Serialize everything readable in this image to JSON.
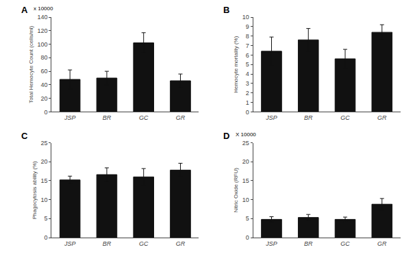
{
  "chart_data": [
    {
      "type": "bar",
      "title": "A",
      "ylabel": "Total Hemocyte Count (cells/ml)",
      "annotations": [
        "x 10000"
      ],
      "categories": [
        "JSP",
        "BR",
        "GC",
        "GR"
      ],
      "values": [
        48,
        50,
        102,
        46
      ],
      "errors": [
        14,
        10,
        15,
        10
      ],
      "color": "#111111",
      "ylim": [
        0,
        140
      ],
      "yticks": [
        0,
        20,
        40,
        60,
        80,
        100,
        120,
        140
      ],
      "grid": false
    },
    {
      "type": "bar",
      "title": "B",
      "ylabel": "Hemocyte mortality (%)",
      "categories": [
        "JSP",
        "BR",
        "GC",
        "GR"
      ],
      "values": [
        6.4,
        7.6,
        5.6,
        8.4
      ],
      "errors": [
        1.5,
        1.2,
        1.0,
        0.8
      ],
      "color": "#111111",
      "ylim": [
        0,
        10
      ],
      "yticks": [
        0,
        1,
        2,
        3,
        4,
        5,
        6,
        7,
        8,
        9,
        10
      ],
      "grid": false
    },
    {
      "type": "bar",
      "title": "C",
      "ylabel": "Phagocytosis ability (%)",
      "categories": [
        "JSP",
        "BR",
        "GC",
        "GR"
      ],
      "values": [
        15.2,
        16.6,
        16.0,
        17.8
      ],
      "errors": [
        1.0,
        1.8,
        2.2,
        1.8
      ],
      "color": "#111111",
      "ylim": [
        0,
        25
      ],
      "yticks": [
        0,
        5,
        10,
        15,
        20,
        25
      ],
      "grid": false
    },
    {
      "type": "bar",
      "title": "D",
      "ylabel": "Nitric Oxide (RFU)",
      "annotations": [
        "X 10000"
      ],
      "categories": [
        "JSP",
        "BR",
        "GC",
        "GR"
      ],
      "values": [
        4.8,
        5.3,
        4.8,
        8.8
      ],
      "errors": [
        0.7,
        0.8,
        0.6,
        1.5
      ],
      "color": "#111111",
      "ylim": [
        0,
        25
      ],
      "yticks": [
        0,
        5,
        10,
        15,
        20,
        25
      ],
      "grid": false
    }
  ]
}
